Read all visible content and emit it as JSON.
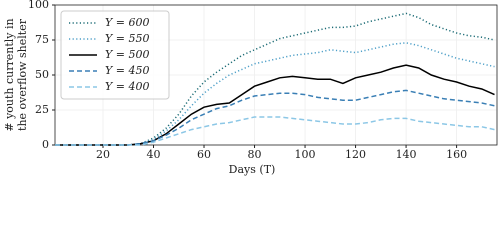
{
  "chart_data": {
    "type": "line",
    "xlabel": "Days (T)",
    "ylabel": [
      "# youth currently in",
      "the overflow shelter"
    ],
    "x": [
      1,
      5,
      10,
      15,
      20,
      25,
      30,
      35,
      40,
      45,
      50,
      55,
      60,
      65,
      70,
      75,
      80,
      85,
      90,
      95,
      100,
      105,
      110,
      115,
      120,
      125,
      130,
      135,
      140,
      145,
      150,
      155,
      160,
      165,
      170,
      175
    ],
    "series": [
      {
        "name": "Y = 600",
        "color": "#1b6b75",
        "linestyle": "dotted",
        "values": [
          0,
          0,
          0,
          0,
          0,
          0,
          0,
          1,
          5,
          12,
          22,
          35,
          45,
          52,
          58,
          64,
          68,
          72,
          76,
          78,
          80,
          82,
          84,
          84,
          85,
          88,
          90,
          92,
          94,
          91,
          86,
          83,
          80,
          78,
          77,
          75
        ]
      },
      {
        "name": "Y = 550",
        "color": "#4d9fc8",
        "linestyle": "dotted",
        "values": [
          0,
          0,
          0,
          0,
          0,
          0,
          0,
          1,
          4,
          10,
          18,
          28,
          37,
          44,
          50,
          54,
          58,
          60,
          62,
          64,
          65,
          66,
          68,
          67,
          66,
          68,
          70,
          72,
          73,
          71,
          68,
          65,
          62,
          60,
          58,
          56
        ]
      },
      {
        "name": "Y = 500",
        "color": "#000000",
        "linestyle": "solid",
        "values": [
          0,
          0,
          0,
          0,
          0,
          0,
          0,
          1,
          3,
          8,
          15,
          22,
          27,
          29,
          30,
          36,
          42,
          45,
          48,
          49,
          48,
          47,
          47,
          44,
          48,
          50,
          52,
          55,
          57,
          55,
          50,
          47,
          45,
          42,
          40,
          36
        ]
      },
      {
        "name": "Y = 450",
        "color": "#3a7fb5",
        "linestyle": "dashed",
        "values": [
          0,
          0,
          0,
          0,
          0,
          0,
          0,
          1,
          3,
          7,
          12,
          18,
          22,
          26,
          28,
          32,
          35,
          36,
          37,
          37,
          36,
          34,
          33,
          32,
          32,
          34,
          36,
          38,
          39,
          37,
          35,
          33,
          32,
          31,
          30,
          28
        ]
      },
      {
        "name": "Y = 400",
        "color": "#8cc7e6",
        "linestyle": "dashed",
        "values": [
          0,
          0,
          0,
          0,
          0,
          0,
          0,
          0,
          2,
          5,
          8,
          11,
          13,
          15,
          16,
          18,
          20,
          20,
          20,
          19,
          18,
          17,
          16,
          15,
          15,
          16,
          18,
          19,
          19,
          17,
          16,
          15,
          14,
          13,
          13,
          11
        ]
      }
    ],
    "xlim": [
      1,
      176
    ],
    "xticks": [
      20,
      40,
      60,
      80,
      100,
      120,
      140,
      160
    ],
    "ylim": [
      0,
      100
    ],
    "yticks": [
      0,
      25,
      50,
      75,
      100
    ],
    "grid": true,
    "legend": "upper left"
  }
}
